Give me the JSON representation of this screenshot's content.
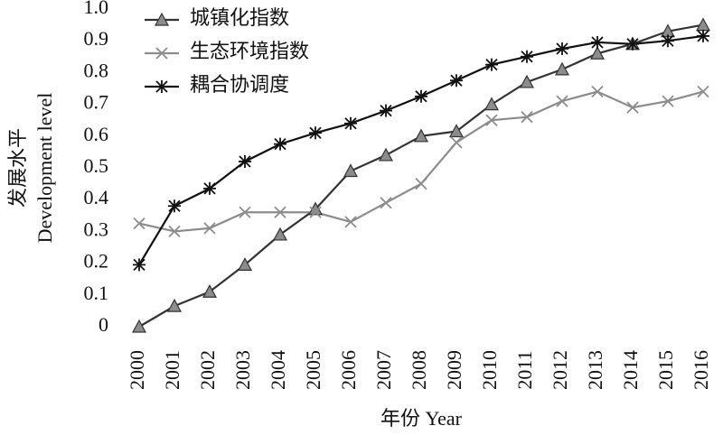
{
  "chart_data": {
    "type": "line",
    "y_label_lines": [
      "发展水平",
      "Development  level"
    ],
    "x_label": "年份 Year",
    "categories": [
      "2000",
      "2001",
      "2002",
      "2003",
      "2004",
      "2005",
      "2006",
      "2007",
      "2008",
      "2009",
      "2010",
      "2011",
      "2012",
      "2013",
      "2014",
      "2015",
      "2016"
    ],
    "series": [
      {
        "name": "城镇化指数",
        "color": "#333333",
        "marker": "triangle",
        "marker_fill": "#8c8c8c",
        "values": [
          0,
          0.065,
          0.11,
          0.195,
          0.29,
          0.37,
          0.49,
          0.54,
          0.6,
          0.615,
          0.7,
          0.77,
          0.81,
          0.86,
          0.89,
          0.93,
          0.95
        ]
      },
      {
        "name": "生态环境指数",
        "color": "#8c8c8c",
        "marker": "x",
        "marker_fill": "#8c8c8c",
        "values": [
          0.325,
          0.3,
          0.31,
          0.36,
          0.36,
          0.36,
          0.33,
          0.39,
          0.45,
          0.58,
          0.65,
          0.66,
          0.71,
          0.74,
          0.69,
          0.71,
          0.74
        ]
      },
      {
        "name": "耦合协调度",
        "color": "#111111",
        "marker": "asterisk",
        "marker_fill": "#111111",
        "values": [
          0.195,
          0.38,
          0.435,
          0.52,
          0.575,
          0.61,
          0.64,
          0.68,
          0.725,
          0.775,
          0.825,
          0.85,
          0.875,
          0.895,
          0.89,
          0.9,
          0.915
        ]
      }
    ],
    "ylim": [
      0,
      1
    ],
    "yticks": [
      0,
      0.1,
      0.2,
      0.3,
      0.4,
      0.5,
      0.6,
      0.7,
      0.8,
      0.9,
      {
        "value": 1,
        "label": "1.0"
      }
    ],
    "legend": "top-left",
    "grid": false
  }
}
